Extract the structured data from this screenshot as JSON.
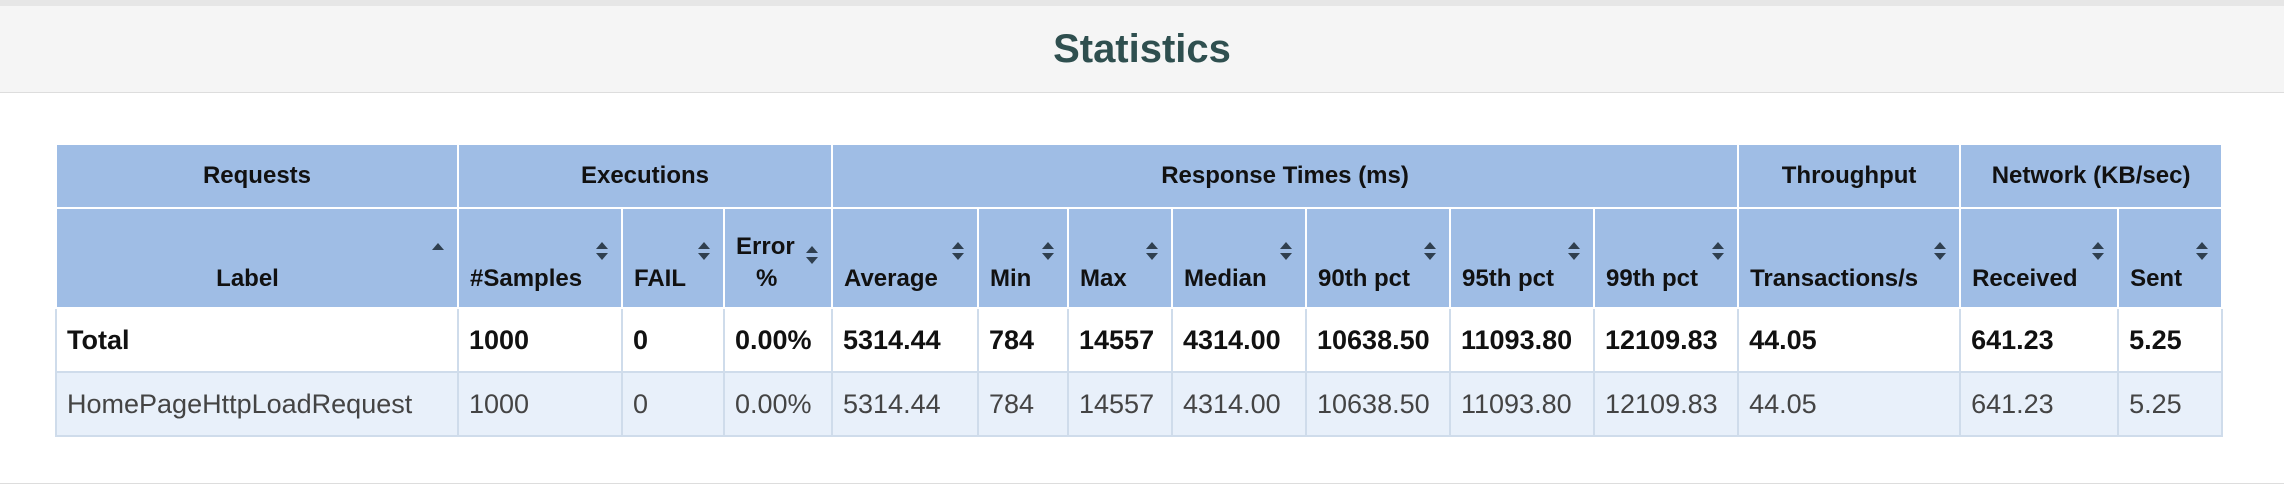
{
  "panel": {
    "title": "Statistics"
  },
  "table": {
    "groups": {
      "requests": "Requests",
      "executions": "Executions",
      "response_times": "Response Times (ms)",
      "throughput": "Throughput",
      "network": "Network (KB/sec)"
    },
    "columns": {
      "label": "Label",
      "samples": "#Samples",
      "fail": "FAIL",
      "error_pct_1": "Error",
      "error_pct_2": "%",
      "average": "Average",
      "min": "Min",
      "max": "Max",
      "median": "Median",
      "pct90": "90th pct",
      "pct95": "95th pct",
      "pct99": "99th pct",
      "tps": "Transactions/s",
      "received": "Received",
      "sent": "Sent"
    },
    "rows": [
      [
        "Total",
        "1000",
        "0",
        "0.00%",
        "5314.44",
        "784",
        "14557",
        "4314.00",
        "10638.50",
        "11093.80",
        "12109.83",
        "44.05",
        "641.23",
        "5.25"
      ],
      [
        "HomePageHttpLoadRequest",
        "1000",
        "0",
        "0.00%",
        "5314.44",
        "784",
        "14557",
        "4314.00",
        "10638.50",
        "11093.80",
        "12109.83",
        "44.05",
        "641.23",
        "5.25"
      ]
    ]
  }
}
